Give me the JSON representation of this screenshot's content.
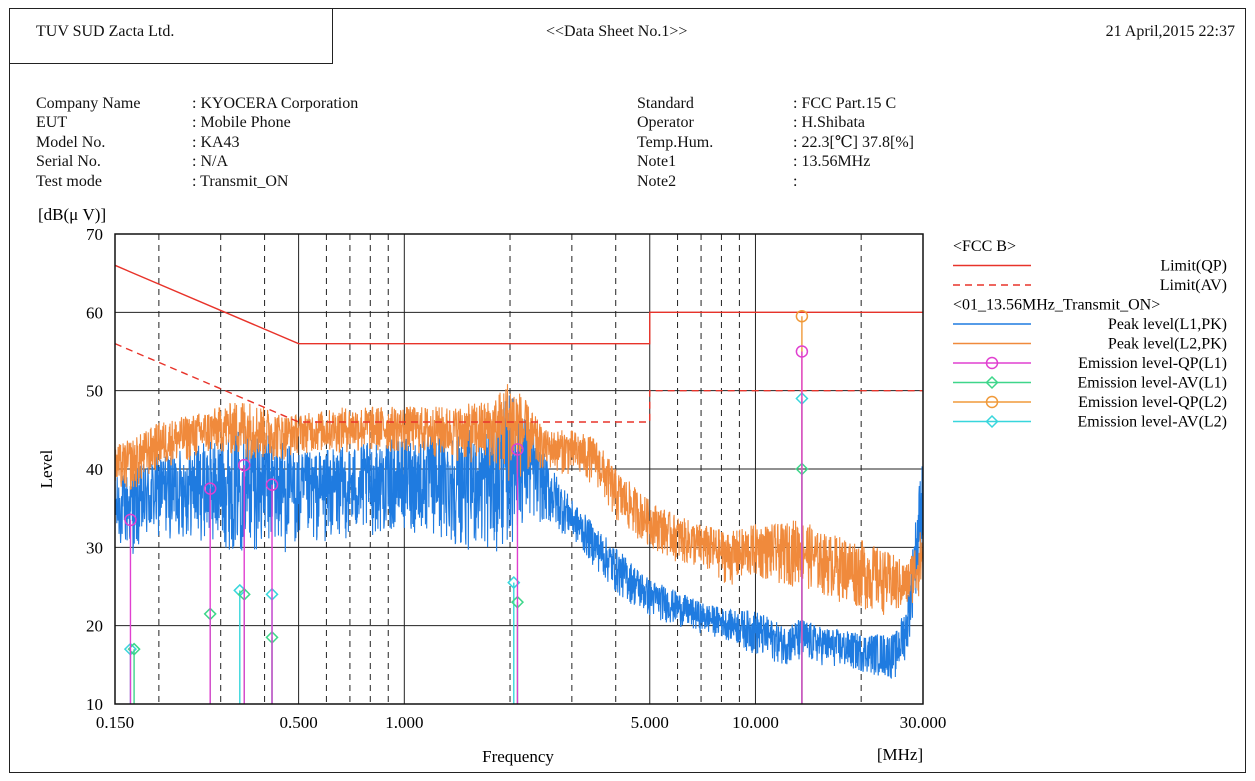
{
  "header": {
    "company": "TUV SUD Zacta Ltd.",
    "sheet_title": "<<Data Sheet No.1>>",
    "datetime": "21 April,2015 22:37"
  },
  "info_left": {
    "labels": [
      "Company Name",
      "EUT",
      "Model No.",
      "Serial No.",
      "Test mode"
    ],
    "values": [
      ": KYOCERA Corporation",
      ": Mobile Phone",
      ": KA43",
      ": N/A",
      ": Transmit_ON"
    ]
  },
  "info_right": {
    "labels": [
      "Standard",
      "Operator",
      "Temp.Hum.",
      "Note1",
      "Note2"
    ],
    "values": [
      ": FCC Part.15 C",
      ": H.Shibata",
      ": 22.3[℃]  37.8[%]",
      ": 13.56MHz",
      ":"
    ]
  },
  "colors": {
    "limit": "#e8332a",
    "l1_peak": "#1f7be0",
    "l2_peak": "#f08a3c",
    "qp_l1": "#e040d0",
    "av_l1": "#3ed68a",
    "qp_l2": "#f09a3a",
    "av_l2": "#38d6dc"
  },
  "chart_data": {
    "type": "line",
    "x_scale": "log",
    "xlim": [
      0.15,
      30
    ],
    "ylim": [
      10,
      70
    ],
    "ylabel": "Level",
    "yunit": "[dB(μ V)]",
    "xlabel": "Frequency",
    "xunit": "[MHz]",
    "x_tick_labels": [
      "0.150",
      "0.500",
      "1.000",
      "5.000",
      "10.000",
      "30.000"
    ],
    "x_ticks": [
      0.15,
      0.5,
      1,
      5,
      10,
      30
    ],
    "y_ticks": [
      10,
      20,
      30,
      40,
      50,
      60,
      70
    ],
    "grid": true,
    "legend_position": "right",
    "legend_groups": [
      {
        "title": "<FCC B>",
        "entries": [
          {
            "name": "Limit(QP)",
            "color_key": "limit",
            "style": "solid",
            "marker": "none"
          },
          {
            "name": "Limit(AV)",
            "color_key": "limit",
            "style": "dashed",
            "marker": "none"
          }
        ]
      },
      {
        "title": "<01_13.56MHz_Transmit_ON>",
        "entries": [
          {
            "name": "Peak level(L1,PK)",
            "color_key": "l1_peak",
            "style": "solid",
            "marker": "none"
          },
          {
            "name": "Peak level(L2,PK)",
            "color_key": "l2_peak",
            "style": "solid",
            "marker": "none"
          },
          {
            "name": "Emission level-QP(L1)",
            "color_key": "qp_l1",
            "style": "solid",
            "marker": "circle"
          },
          {
            "name": "Emission level-AV(L1)",
            "color_key": "av_l1",
            "style": "solid",
            "marker": "diamond"
          },
          {
            "name": "Emission level-QP(L2)",
            "color_key": "qp_l2",
            "style": "solid",
            "marker": "circle"
          },
          {
            "name": "Emission level-AV(L2)",
            "color_key": "av_l2",
            "style": "solid",
            "marker": "diamond"
          }
        ]
      }
    ],
    "limit_qp": {
      "x": [
        0.15,
        0.5,
        0.5,
        5,
        5,
        30
      ],
      "y": [
        66,
        56,
        56,
        56,
        60,
        60
      ]
    },
    "limit_av": {
      "x": [
        0.15,
        0.5,
        0.5,
        5,
        5,
        30
      ],
      "y": [
        56,
        46,
        46,
        46,
        50,
        50
      ]
    },
    "peak_l1": {
      "x": [
        0.15,
        0.17,
        0.2,
        0.25,
        0.3,
        0.35,
        0.4,
        0.45,
        0.5,
        0.7,
        1.0,
        1.4,
        1.8,
        2.0,
        2.2,
        2.5,
        3.0,
        4.0,
        5.0,
        7.0,
        8.5,
        10,
        12,
        13.56,
        15,
        20,
        25,
        27,
        30
      ],
      "y_low": [
        30,
        29,
        31,
        31,
        30,
        29,
        30,
        29,
        30,
        31,
        32,
        30,
        29,
        30,
        33,
        33,
        31,
        24,
        21,
        19,
        18,
        16,
        15,
        15,
        15,
        14,
        13,
        16,
        30
      ],
      "y_high": [
        39,
        40,
        42,
        43,
        44,
        46,
        45,
        44,
        42,
        43,
        44,
        45,
        46,
        50,
        47,
        42,
        36,
        30,
        26,
        23,
        22,
        22,
        20,
        21,
        20,
        19,
        19,
        23,
        43
      ]
    },
    "peak_l2": {
      "x": [
        0.15,
        0.17,
        0.2,
        0.25,
        0.3,
        0.35,
        0.4,
        0.45,
        0.5,
        0.7,
        1.0,
        1.4,
        1.8,
        2.0,
        2.2,
        2.5,
        3.0,
        3.5,
        4.0,
        5.0,
        6.0,
        7.0,
        8.5,
        10,
        12,
        13.56,
        15,
        20,
        25,
        27,
        30
      ],
      "y_low": [
        37,
        37,
        40,
        41,
        42,
        41,
        41,
        41,
        42,
        42,
        42,
        41,
        40,
        38,
        39,
        40,
        39,
        38,
        33,
        30,
        28,
        27,
        25,
        26,
        25,
        25,
        24,
        22,
        21,
        22,
        24
      ],
      "y_high": [
        43,
        44,
        46,
        47,
        48,
        49,
        48,
        47,
        47,
        48,
        48,
        48,
        49,
        52,
        49,
        45,
        45,
        44,
        40,
        36,
        34,
        33,
        32,
        33,
        33,
        34,
        32,
        31,
        29,
        28,
        33
      ]
    },
    "emission_qp_l1": {
      "x": [
        0.166,
        0.28,
        0.35,
        0.42,
        2.1,
        13.56
      ],
      "y": [
        33.5,
        37.5,
        40.5,
        38.0,
        42.5,
        55.0
      ]
    },
    "emission_av_l1": {
      "x": [
        0.17,
        0.28,
        0.35,
        0.42,
        2.1,
        13.56
      ],
      "y": [
        17.0,
        21.5,
        24.0,
        18.5,
        23.0,
        40.0
      ]
    },
    "emission_qp_l2": {
      "x": [
        13.56
      ],
      "y": [
        59.5
      ]
    },
    "emission_av_l2": {
      "x": [
        0.166,
        0.34,
        0.42,
        2.05,
        13.56
      ],
      "y": [
        17.0,
        24.5,
        24.0,
        25.5,
        49.0
      ]
    }
  }
}
